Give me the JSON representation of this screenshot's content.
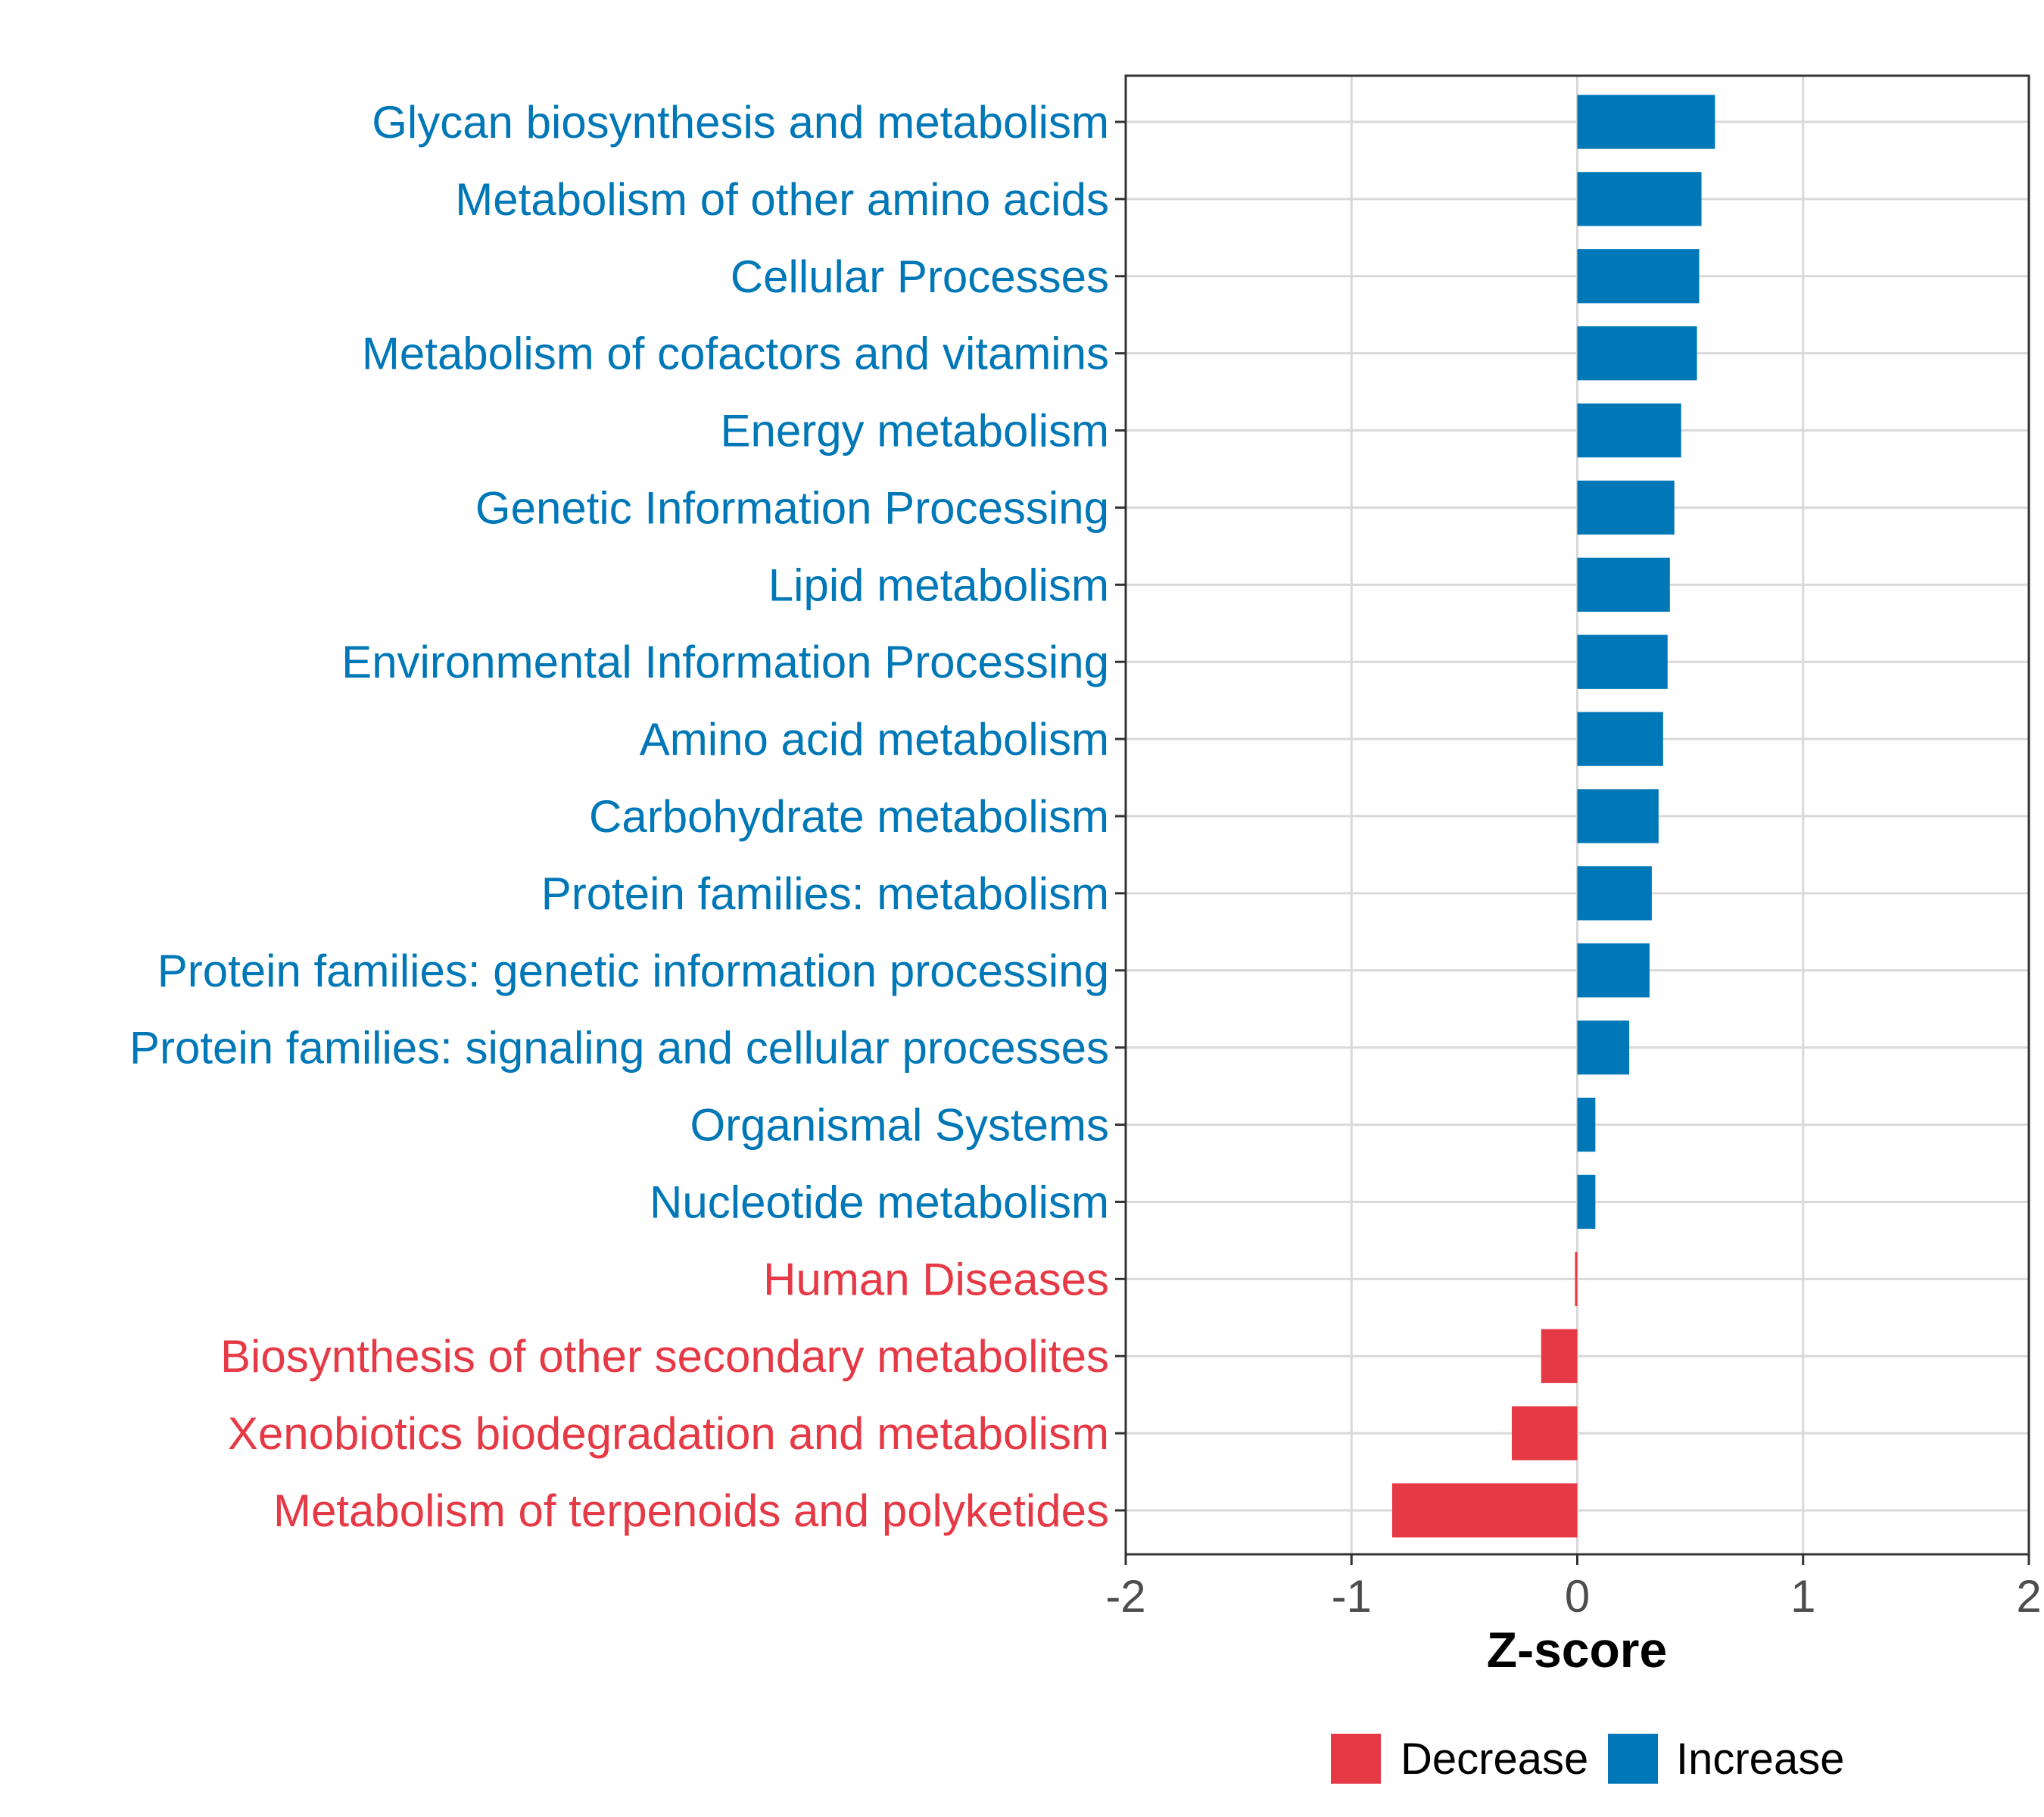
{
  "chart_data": {
    "type": "bar",
    "orientation": "horizontal",
    "title": "",
    "xlabel": "Z-score",
    "ylabel": "",
    "xlim": [
      -2,
      2
    ],
    "xticks": [
      "-2",
      "-1",
      "0",
      "1",
      "2"
    ],
    "grid": true,
    "legend_position": "bottom",
    "colors": {
      "Decrease": "#e63946",
      "Increase": "#0077b6"
    },
    "legend": [
      {
        "label": "Decrease",
        "color": "#e63946"
      },
      {
        "label": "Increase",
        "color": "#0077b6"
      }
    ],
    "categories": [
      "Glycan biosynthesis and metabolism",
      "Metabolism of other amino acids",
      "Cellular Processes",
      "Metabolism of cofactors and vitamins",
      "Energy metabolism",
      "Genetic Information Processing",
      "Lipid metabolism",
      "Environmental Information Processing",
      "Amino acid metabolism",
      "Carbohydrate metabolism",
      "Protein families: metabolism",
      "Protein families: genetic information processing",
      "Protein families: signaling and cellular processes",
      "Organismal Systems",
      "Nucleotide metabolism",
      "Human Diseases",
      "Biosynthesis of other secondary metabolites",
      "Xenobiotics biodegradation and metabolism",
      "Metabolism of terpenoids and polyketides"
    ],
    "values": [
      0.61,
      0.55,
      0.54,
      0.53,
      0.46,
      0.43,
      0.41,
      0.4,
      0.38,
      0.36,
      0.33,
      0.32,
      0.23,
      0.08,
      0.08,
      -0.01,
      -0.16,
      -0.29,
      -0.82
    ],
    "groups": [
      "Increase",
      "Increase",
      "Increase",
      "Increase",
      "Increase",
      "Increase",
      "Increase",
      "Increase",
      "Increase",
      "Increase",
      "Increase",
      "Increase",
      "Increase",
      "Increase",
      "Increase",
      "Decrease",
      "Decrease",
      "Decrease",
      "Decrease"
    ]
  }
}
